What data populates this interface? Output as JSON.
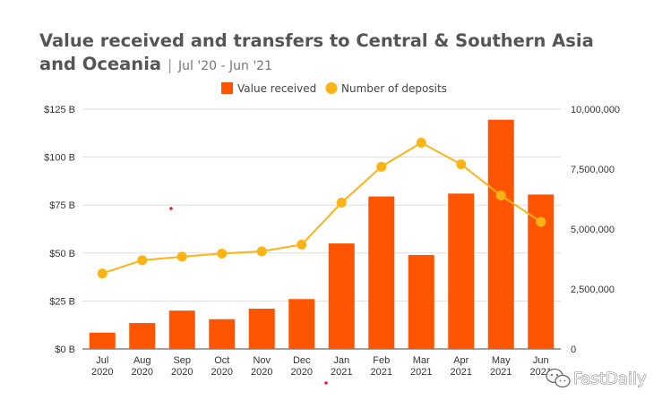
{
  "chart_data": {
    "type": "bar",
    "title": "Value received and transfers to Central & Southern Asia and Oceania",
    "subtitle_separator": "|",
    "subtitle": "Jul '20 - Jun '21",
    "categories": [
      [
        "Jul",
        "2020"
      ],
      [
        "Aug",
        "2020"
      ],
      [
        "Sep",
        "2020"
      ],
      [
        "Oct",
        "2020"
      ],
      [
        "Nov",
        "2020"
      ],
      [
        "Dec",
        "2020"
      ],
      [
        "Jan",
        "2021"
      ],
      [
        "Feb",
        "2021"
      ],
      [
        "Mar",
        "2021"
      ],
      [
        "Apr",
        "2021"
      ],
      [
        "May",
        "2021"
      ],
      [
        "Jun",
        "2021"
      ]
    ],
    "series": [
      {
        "name": "Value received",
        "type": "bar",
        "axis": "left",
        "color": "#ff5500",
        "values": [
          8.5,
          13.5,
          20,
          15.5,
          21,
          26,
          55,
          79.5,
          49,
          81,
          119.5,
          80.5
        ]
      },
      {
        "name": "Number of deposits",
        "type": "line",
        "axis": "right",
        "color": "#fbb315",
        "values": [
          3150000,
          3700000,
          3850000,
          3980000,
          4070000,
          4350000,
          6100000,
          7600000,
          8600000,
          7700000,
          6400000,
          5300000
        ]
      }
    ],
    "left_axis": {
      "ylim": [
        0,
        125
      ],
      "ticks": [
        0,
        25,
        50,
        75,
        100,
        125
      ],
      "tick_labels": [
        "$0 B",
        "$25 B",
        "$50 B",
        "$75 B",
        "$100 B",
        "$125 B"
      ]
    },
    "right_axis": {
      "ylim": [
        0,
        10000000
      ],
      "ticks": [
        0,
        2500000,
        5000000,
        7500000,
        10000000
      ],
      "tick_labels": [
        "0",
        "2,500,000",
        "5,000,000",
        "7,500,000",
        "10,000,000"
      ]
    },
    "grid": true,
    "legend_position": "top-center"
  },
  "watermark": {
    "text": "FastDaily",
    "icon": "wechat-icon"
  },
  "colors": {
    "title": "#555555",
    "grid": "#dddddd",
    "bar": "#ff5500",
    "line": "#fbb315"
  }
}
